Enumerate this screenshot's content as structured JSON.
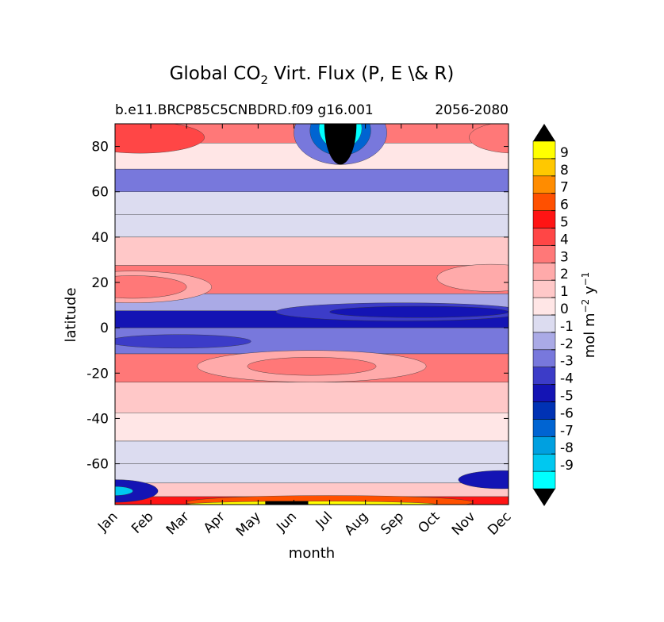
{
  "chart_data": {
    "type": "heatmap",
    "title_parts": {
      "prefix": "Global CO",
      "sub": "2",
      "suffix": " Virt. Flux (P, E \\& R)"
    },
    "subtitle_left": "b.e11.BRCP85C5CNBDRD.f09 g16.001",
    "subtitle_right": "2056-2080",
    "xlabel": "month",
    "ylabel": "latitude",
    "x_categories": [
      "Jan",
      "Feb",
      "Mar",
      "Apr",
      "May",
      "Jun",
      "Jul",
      "Aug",
      "Sep",
      "Oct",
      "Nov",
      "Dec"
    ],
    "y_ticks": [
      80,
      60,
      40,
      20,
      0,
      -20,
      -40,
      -60
    ],
    "ylim": [
      -78,
      90
    ],
    "colorbar": {
      "label_parts": {
        "a": "mol m",
        "b": "−2",
        "c": " y",
        "d": "−1"
      },
      "tick_labels": [
        "9",
        "8",
        "7",
        "6",
        "5",
        "4",
        "3",
        "2",
        "1",
        "0",
        "-1",
        "-2",
        "-3",
        "-4",
        "-5",
        "-6",
        "-7",
        "-8",
        "-9"
      ],
      "levels": [
        -10,
        -9,
        -8,
        -7,
        -6,
        -5,
        -4,
        -3,
        -2,
        -1,
        0,
        1,
        2,
        3,
        4,
        5,
        6,
        7,
        8,
        9,
        10
      ],
      "colors": [
        "#00ffff",
        "#00c8f0",
        "#00a0e0",
        "#0064d2",
        "#0032b4",
        "#1414b4",
        "#3c3cc8",
        "#7878dc",
        "#aaaae6",
        "#dcdcf0",
        "#ffe6e6",
        "#ffc8c8",
        "#ffaaaa",
        "#ff7878",
        "#ff4646",
        "#ff1414",
        "#ff5000",
        "#ff8c00",
        "#ffc800",
        "#ffff00"
      ],
      "extend": "both"
    },
    "field_description_profile": [
      {
        "lat": 88,
        "value": 3
      },
      {
        "lat": 75,
        "value": 0
      },
      {
        "lat": 65,
        "value": -3
      },
      {
        "lat": 55,
        "value": -1
      },
      {
        "lat": 45,
        "value": -1
      },
      {
        "lat": 35,
        "value": 1
      },
      {
        "lat": 20,
        "value": 3
      },
      {
        "lat": 10,
        "value": -2
      },
      {
        "lat": 5,
        "value": -5
      },
      {
        "lat": -5,
        "value": -3
      },
      {
        "lat": -18,
        "value": 3
      },
      {
        "lat": -30,
        "value": 1
      },
      {
        "lat": -45,
        "value": 0
      },
      {
        "lat": -55,
        "value": -1
      },
      {
        "lat": -65,
        "value": -1
      },
      {
        "lat": -72,
        "value": 1
      },
      {
        "lat": -77,
        "value": 5
      }
    ]
  }
}
